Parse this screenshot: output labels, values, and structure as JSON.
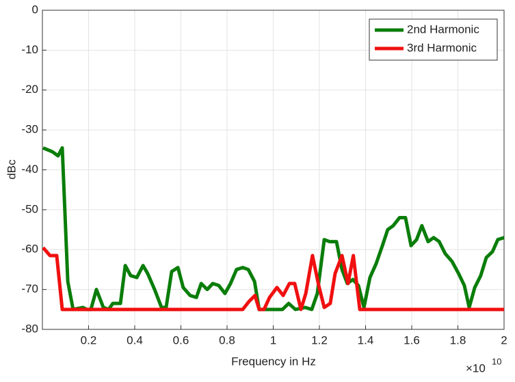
{
  "chart_data": {
    "type": "line",
    "x_label": "Frequency in Hz",
    "y_label": "dBc",
    "x_exponent_base": "×10",
    "x_exponent": "10",
    "xlim": [
      0,
      2
    ],
    "xticks": [
      0.2,
      0.4,
      0.6,
      0.8,
      1,
      1.2,
      1.4,
      1.6,
      1.8,
      2
    ],
    "ylim": [
      -80,
      0
    ],
    "yticks": [
      0,
      -10,
      -20,
      -30,
      -40,
      -50,
      -60,
      -70,
      -80
    ],
    "grid": true,
    "legend": "northeast",
    "series": [
      {
        "name": "2nd Harmonic",
        "color": "#0a7d0a",
        "x": [
          0.003,
          0.044,
          0.068,
          0.086,
          0.11,
          0.133,
          0.175,
          0.193,
          0.21,
          0.234,
          0.264,
          0.287,
          0.305,
          0.338,
          0.359,
          0.382,
          0.409,
          0.436,
          0.456,
          0.486,
          0.516,
          0.536,
          0.56,
          0.587,
          0.61,
          0.64,
          0.667,
          0.688,
          0.714,
          0.738,
          0.764,
          0.791,
          0.815,
          0.841,
          0.868,
          0.892,
          0.919,
          0.939,
          0.972,
          1.01,
          1.04,
          1.067,
          1.096,
          1.138,
          1.167,
          1.191,
          1.221,
          1.244,
          1.274,
          1.298,
          1.321,
          1.345,
          1.369,
          1.393,
          1.419,
          1.446,
          1.473,
          1.496,
          1.52,
          1.547,
          1.573,
          1.597,
          1.621,
          1.644,
          1.671,
          1.695,
          1.719,
          1.745,
          1.775,
          1.803,
          1.828,
          1.849,
          1.873,
          1.899,
          1.923,
          1.95,
          1.973,
          2.0
        ],
        "values": [
          -34.5,
          -35.5,
          -36.5,
          -34.5,
          -68,
          -75,
          -74.5,
          -75,
          -75,
          -70,
          -74.5,
          -75,
          -73.5,
          -73.5,
          -64,
          -66.5,
          -67,
          -64,
          -66,
          -70,
          -74.5,
          -74.5,
          -65.5,
          -64.5,
          -69.5,
          -71.5,
          -72,
          -68.5,
          -70,
          -68.5,
          -69,
          -71,
          -68.5,
          -65,
          -64.5,
          -65,
          -68,
          -75,
          -75,
          -75,
          -75,
          -73.5,
          -75,
          -74.5,
          -75,
          -71,
          -57.5,
          -58,
          -58,
          -65,
          -68.5,
          -67.5,
          -69,
          -74.5,
          -67,
          -63.5,
          -59,
          -55,
          -54,
          -52,
          -52,
          -59,
          -57.5,
          -54,
          -58,
          -57,
          -58,
          -61,
          -63,
          -66,
          -69,
          -74.5,
          -69.5,
          -66.5,
          -62,
          -60.5,
          -57.5,
          -57
        ]
      },
      {
        "name": "3rd Harmonic",
        "color": "#f01010",
        "x": [
          0.003,
          0.033,
          0.062,
          0.086,
          0.868,
          0.895,
          0.921,
          0.939,
          0.96,
          0.984,
          1.016,
          1.043,
          1.07,
          1.093,
          1.12,
          1.141,
          1.17,
          1.197,
          1.221,
          1.247,
          1.268,
          1.298,
          1.324,
          1.347,
          1.375,
          2.0
        ],
        "values": [
          -59.5,
          -61.5,
          -61.5,
          -75,
          -75,
          -73,
          -71.5,
          -75,
          -75,
          -72,
          -69.5,
          -71.5,
          -68.5,
          -68.5,
          -75,
          -71,
          -61.5,
          -69,
          -74.5,
          -73.5,
          -66,
          -61.5,
          -68.5,
          -61.5,
          -75,
          -75
        ]
      }
    ]
  }
}
